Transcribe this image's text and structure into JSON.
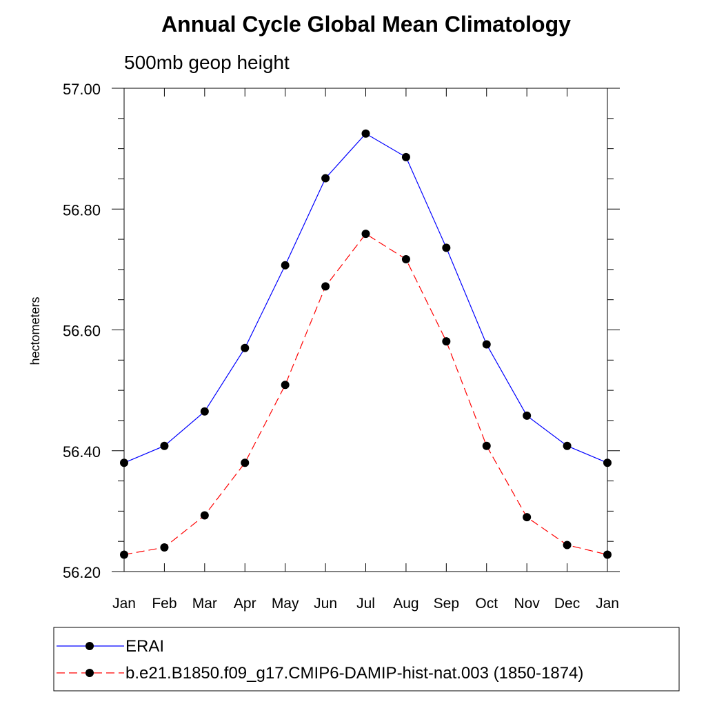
{
  "chart_data": {
    "type": "line",
    "title": "Annual Cycle Global Mean Climatology",
    "subtitle": "500mb geop height",
    "xlabel": "",
    "ylabel": "hectometers",
    "categories": [
      "Jan",
      "Feb",
      "Mar",
      "Apr",
      "May",
      "Jun",
      "Jul",
      "Aug",
      "Sep",
      "Oct",
      "Nov",
      "Dec",
      "Jan"
    ],
    "ylim": [
      56.2,
      57.0
    ],
    "yticks": [
      "56.20",
      "56.40",
      "56.60",
      "56.80",
      "57.00"
    ],
    "yminor_step": 0.05,
    "grid": false,
    "legend_position": "bottom",
    "series": [
      {
        "name": "ERAI",
        "color": "#0000ff",
        "style": "solid",
        "marker": "filled-circle",
        "values": [
          56.38,
          56.408,
          56.465,
          56.57,
          56.707,
          56.851,
          56.925,
          56.886,
          56.736,
          56.576,
          56.458,
          56.408,
          56.38
        ]
      },
      {
        "name": "b.e21.B1850.f09_g17.CMIP6-DAMIP-hist-nat.003 (1850-1874)",
        "color": "#ff0000",
        "style": "dashed",
        "marker": "filled-circle",
        "values": [
          56.228,
          56.24,
          56.293,
          56.38,
          56.509,
          56.672,
          56.759,
          56.717,
          56.581,
          56.408,
          56.29,
          56.244,
          56.228
        ]
      }
    ]
  }
}
